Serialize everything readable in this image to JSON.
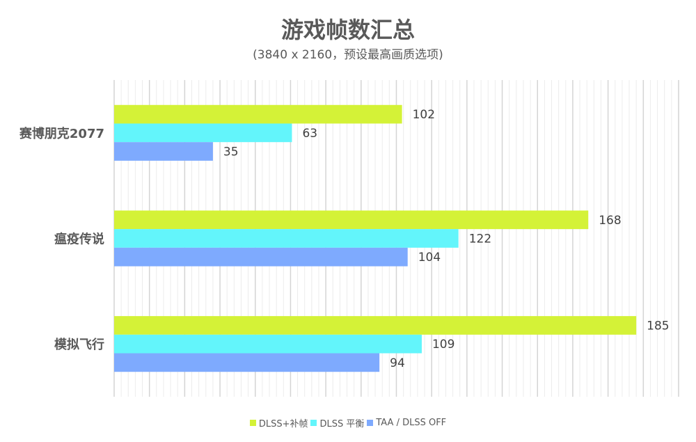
{
  "chart_data": {
    "type": "bar",
    "orientation": "horizontal",
    "title": "游戏帧数汇总",
    "subtitle": "(3840 x 2160，预设最高画质选项)",
    "categories": [
      "赛博朋克2077",
      "瘟疫传说",
      "模拟飞行"
    ],
    "series": [
      {
        "name": "DLSS+补帧",
        "color": "#d4f237",
        "values": [
          102,
          168,
          185
        ]
      },
      {
        "name": "DLSS 平衡",
        "color": "#63f5fb",
        "values": [
          63,
          122,
          109
        ]
      },
      {
        "name": "TAA / DLSS OFF",
        "color": "#7eaafe",
        "values": [
          35,
          104,
          94
        ]
      }
    ],
    "xlim": [
      0,
      200
    ],
    "grid": true,
    "legend": "bottom"
  }
}
